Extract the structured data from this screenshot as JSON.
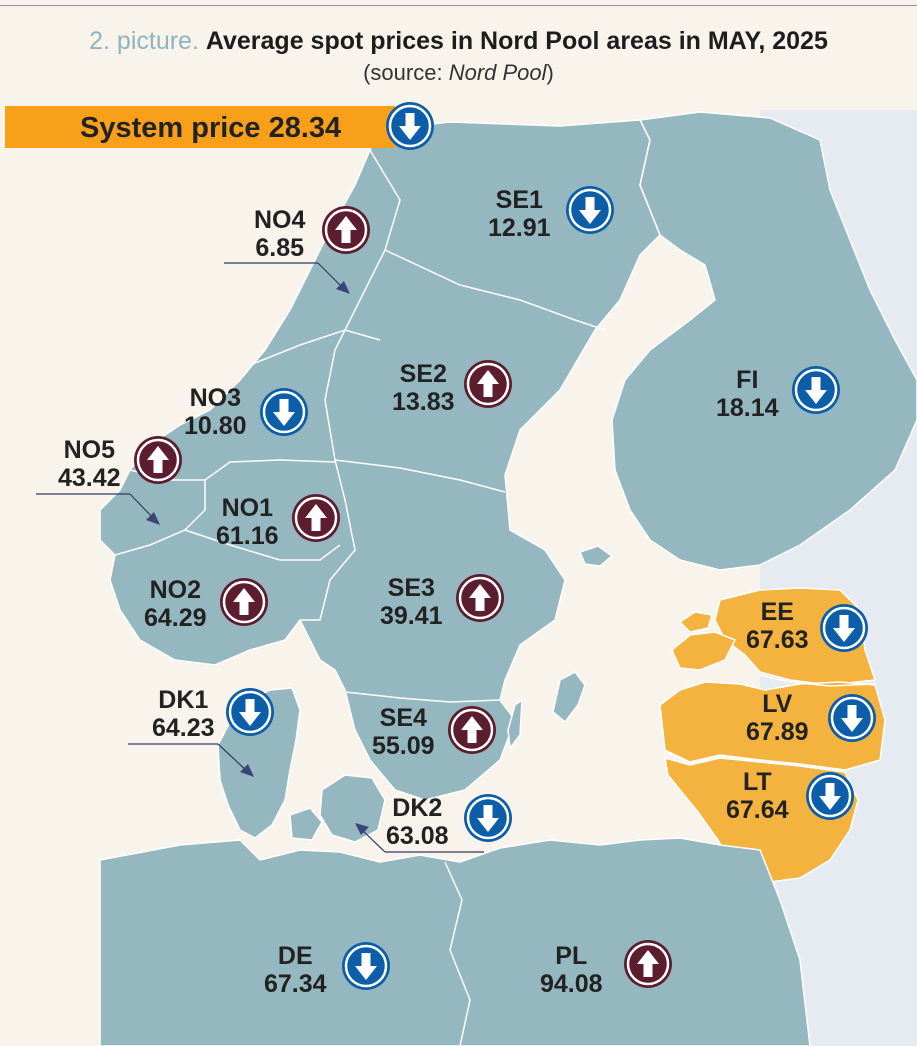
{
  "header": {
    "picture_label": "2. picture.",
    "title": "Average spot prices in Nord Pool areas in MAY, 2025",
    "source_prefix": "(source: ",
    "source_name": "Nord Pool",
    "source_suffix": ")"
  },
  "system_price": {
    "label": "System price 28.34",
    "value": 28.34,
    "trend": "down",
    "icon": "arrow-down-icon",
    "bar_color": "#f8a01a"
  },
  "colors": {
    "land": "#95b8c0",
    "baltic_states": "#f4b23e",
    "sea": "#f8f4ec",
    "arrow_down_circle": "#0c5ea9",
    "arrow_up_circle": "#5c1e2f"
  },
  "areas": [
    {
      "code": "NO4",
      "price": "6.85",
      "trend": "up"
    },
    {
      "code": "SE1",
      "price": "12.91",
      "trend": "down"
    },
    {
      "code": "SE2",
      "price": "13.83",
      "trend": "up"
    },
    {
      "code": "FI",
      "price": "18.14",
      "trend": "down"
    },
    {
      "code": "NO3",
      "price": "10.80",
      "trend": "down"
    },
    {
      "code": "NO5",
      "price": "43.42",
      "trend": "up"
    },
    {
      "code": "NO1",
      "price": "61.16",
      "trend": "up"
    },
    {
      "code": "NO2",
      "price": "64.29",
      "trend": "up"
    },
    {
      "code": "SE3",
      "price": "39.41",
      "trend": "up"
    },
    {
      "code": "EE",
      "price": "67.63",
      "trend": "down"
    },
    {
      "code": "LV",
      "price": "67.89",
      "trend": "down"
    },
    {
      "code": "DK1",
      "price": "64.23",
      "trend": "down"
    },
    {
      "code": "SE4",
      "price": "55.09",
      "trend": "up"
    },
    {
      "code": "LT",
      "price": "67.64",
      "trend": "down"
    },
    {
      "code": "DK2",
      "price": "63.08",
      "trend": "down"
    },
    {
      "code": "DE",
      "price": "67.34",
      "trend": "down"
    },
    {
      "code": "PL",
      "price": "94.08",
      "trend": "up"
    }
  ]
}
